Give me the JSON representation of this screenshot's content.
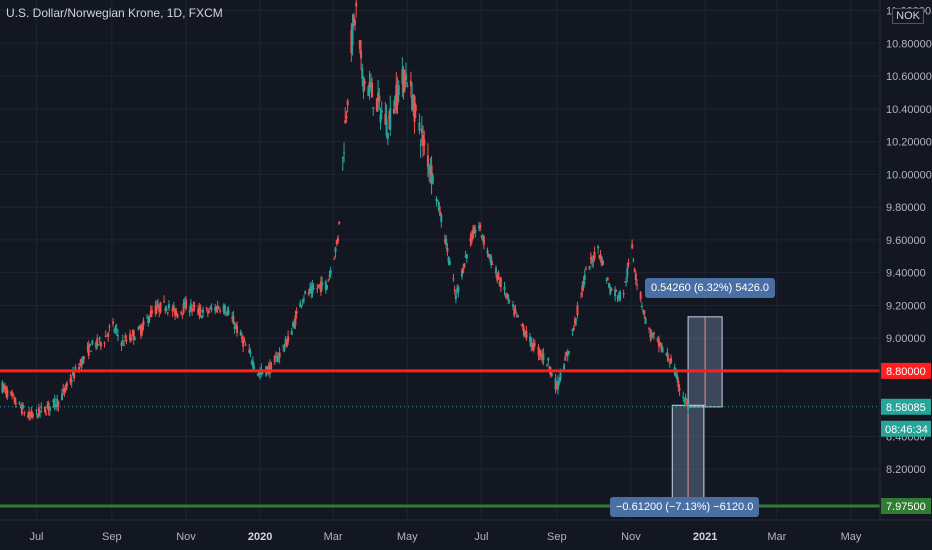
{
  "title": "U.S. Dollar/Norwegian Krone, 1D, FXCM",
  "currency_badge": "NOK",
  "chart_data": {
    "type": "candlestick",
    "x_ticks": [
      {
        "date": "2019-07-01",
        "label": "Jul"
      },
      {
        "date": "2019-09-01",
        "label": "Sep"
      },
      {
        "date": "2019-11-01",
        "label": "Nov"
      },
      {
        "date": "2020-01-01",
        "label": "2020"
      },
      {
        "date": "2020-03-01",
        "label": "Mar"
      },
      {
        "date": "2020-05-01",
        "label": "May"
      },
      {
        "date": "2020-07-01",
        "label": "Jul"
      },
      {
        "date": "2020-09-01",
        "label": "Sep"
      },
      {
        "date": "2020-11-01",
        "label": "Nov"
      },
      {
        "date": "2021-01-01",
        "label": "2021"
      },
      {
        "date": "2021-03-01",
        "label": "Mar"
      },
      {
        "date": "2021-05-01",
        "label": "May"
      }
    ],
    "y_ticks": [
      "11.00000",
      "10.80000",
      "10.60000",
      "10.40000",
      "10.20000",
      "10.00000",
      "9.80000",
      "9.60000",
      "9.40000",
      "9.20000",
      "9.00000",
      "8.80000",
      "8.58085",
      "8.40000",
      "8.20000",
      "7.97500"
    ],
    "ylim": [
      7.92,
      11.04
    ],
    "price_path": [
      [
        "2019-06-01",
        8.72
      ],
      [
        "2019-06-15",
        8.6
      ],
      [
        "2019-06-25",
        8.52
      ],
      [
        "2019-07-05",
        8.55
      ],
      [
        "2019-07-20",
        8.62
      ],
      [
        "2019-08-01",
        8.78
      ],
      [
        "2019-08-15",
        8.95
      ],
      [
        "2019-08-25",
        8.98
      ],
      [
        "2019-09-01",
        9.08
      ],
      [
        "2019-09-10",
        8.97
      ],
      [
        "2019-09-25",
        9.05
      ],
      [
        "2019-10-05",
        9.17
      ],
      [
        "2019-10-15",
        9.2
      ],
      [
        "2019-10-25",
        9.15
      ],
      [
        "2019-11-01",
        9.2
      ],
      [
        "2019-11-15",
        9.15
      ],
      [
        "2019-12-01",
        9.2
      ],
      [
        "2019-12-10",
        9.1
      ],
      [
        "2019-12-20",
        8.95
      ],
      [
        "2019-12-31",
        8.78
      ],
      [
        "2020-01-10",
        8.82
      ],
      [
        "2020-01-25",
        9.0
      ],
      [
        "2020-02-05",
        9.25
      ],
      [
        "2020-02-15",
        9.3
      ],
      [
        "2020-02-25",
        9.33
      ],
      [
        "2020-03-05",
        9.6
      ],
      [
        "2020-03-10",
        10.2
      ],
      [
        "2020-03-16",
        10.8
      ],
      [
        "2020-03-20",
        11.0
      ],
      [
        "2020-03-25",
        10.6
      ],
      [
        "2020-04-05",
        10.45
      ],
      [
        "2020-04-15",
        10.3
      ],
      [
        "2020-04-25",
        10.55
      ],
      [
        "2020-05-01",
        10.6
      ],
      [
        "2020-05-10",
        10.3
      ],
      [
        "2020-05-20",
        10.05
      ],
      [
        "2020-06-01",
        9.62
      ],
      [
        "2020-06-10",
        9.25
      ],
      [
        "2020-06-20",
        9.55
      ],
      [
        "2020-06-28",
        9.7
      ],
      [
        "2020-07-10",
        9.45
      ],
      [
        "2020-07-25",
        9.2
      ],
      [
        "2020-08-10",
        8.98
      ],
      [
        "2020-08-25",
        8.85
      ],
      [
        "2020-09-01",
        8.7
      ],
      [
        "2020-09-10",
        8.9
      ],
      [
        "2020-09-25",
        9.4
      ],
      [
        "2020-10-05",
        9.55
      ],
      [
        "2020-10-15",
        9.3
      ],
      [
        "2020-10-25",
        9.25
      ],
      [
        "2020-11-02",
        9.55
      ],
      [
        "2020-11-05",
        9.38
      ],
      [
        "2020-11-15",
        9.05
      ],
      [
        "2020-11-25",
        8.95
      ],
      [
        "2020-12-05",
        8.85
      ],
      [
        "2020-12-10",
        8.72
      ],
      [
        "2020-12-18",
        8.58
      ]
    ],
    "horizontal_lines": [
      {
        "value": 8.8,
        "label": "8.80000",
        "color": "#ff1f1f"
      },
      {
        "value": 7.975,
        "label": "7.97500",
        "color": "#2e7d32"
      }
    ],
    "last_price": {
      "value": 8.58085,
      "label": "8.58085",
      "countdown": "08:46:34",
      "color": "#26a69a"
    },
    "up_color": "#26a69a",
    "down_color": "#ef5350",
    "measure_up": {
      "label": "0.54260 (6.32%) 5426.0",
      "from_price": 8.58,
      "to_price": 9.13,
      "start_date": "2020-12-18",
      "end_date": "2021-01-15"
    },
    "measure_down": {
      "label": "−0.61200 (−7.13%) −6120.0",
      "from_price": 8.59,
      "to_price": 7.975,
      "start_date": "2020-12-05",
      "end_date": "2020-12-31"
    }
  }
}
